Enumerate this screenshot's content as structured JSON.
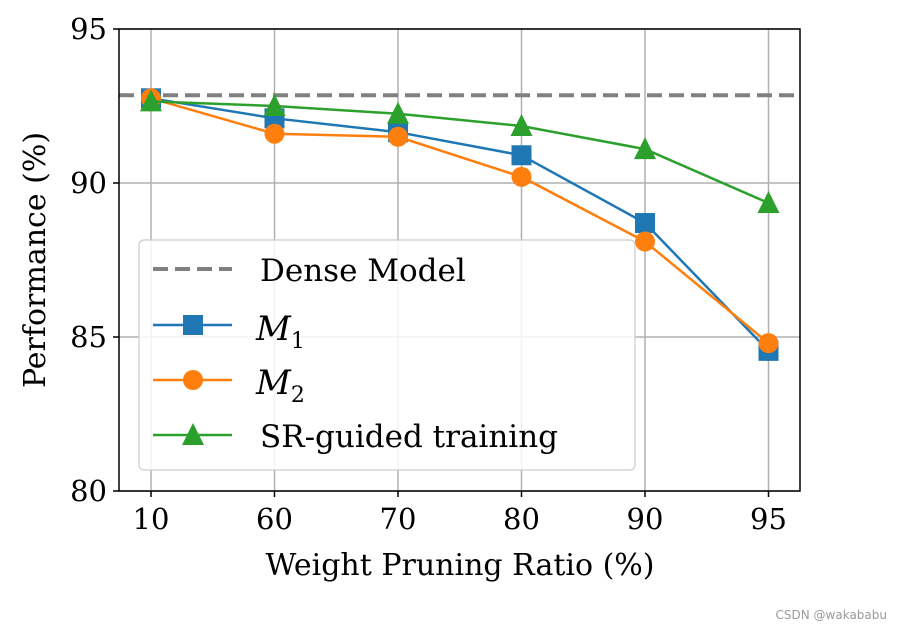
{
  "chart_data": {
    "type": "line",
    "title": "",
    "xlabel": "Weight Pruning Ratio (%)",
    "ylabel": "Performance (%)",
    "categories": [
      "10",
      "60",
      "70",
      "80",
      "90",
      "95"
    ],
    "ylim": [
      80,
      95
    ],
    "yticks": [
      80,
      85,
      90,
      95
    ],
    "grid": true,
    "legend_position": "lower-left",
    "reference_line": {
      "name": "Dense Model",
      "value": 92.85,
      "color": "#808080",
      "style": "dashed"
    },
    "series": [
      {
        "name": "M1",
        "subscript": "1",
        "color": "#1f77b4",
        "marker": "square",
        "values": [
          92.75,
          92.1,
          91.65,
          90.9,
          88.7,
          84.55
        ]
      },
      {
        "name": "M2",
        "subscript": "2",
        "color": "#ff7f0e",
        "marker": "circle",
        "values": [
          92.75,
          91.6,
          91.5,
          90.2,
          88.1,
          84.8
        ]
      },
      {
        "name": "SR-guided training",
        "color": "#2ca02c",
        "marker": "triangle",
        "values": [
          92.65,
          92.5,
          92.25,
          91.85,
          91.1,
          89.35
        ]
      }
    ]
  },
  "legend": {
    "dense_label": "Dense Model",
    "m1_letter": "M",
    "m1_sub": "1",
    "m2_letter": "M",
    "m2_sub": "2",
    "sr_label": "SR-guided training"
  },
  "watermark": "CSDN @wakababu"
}
